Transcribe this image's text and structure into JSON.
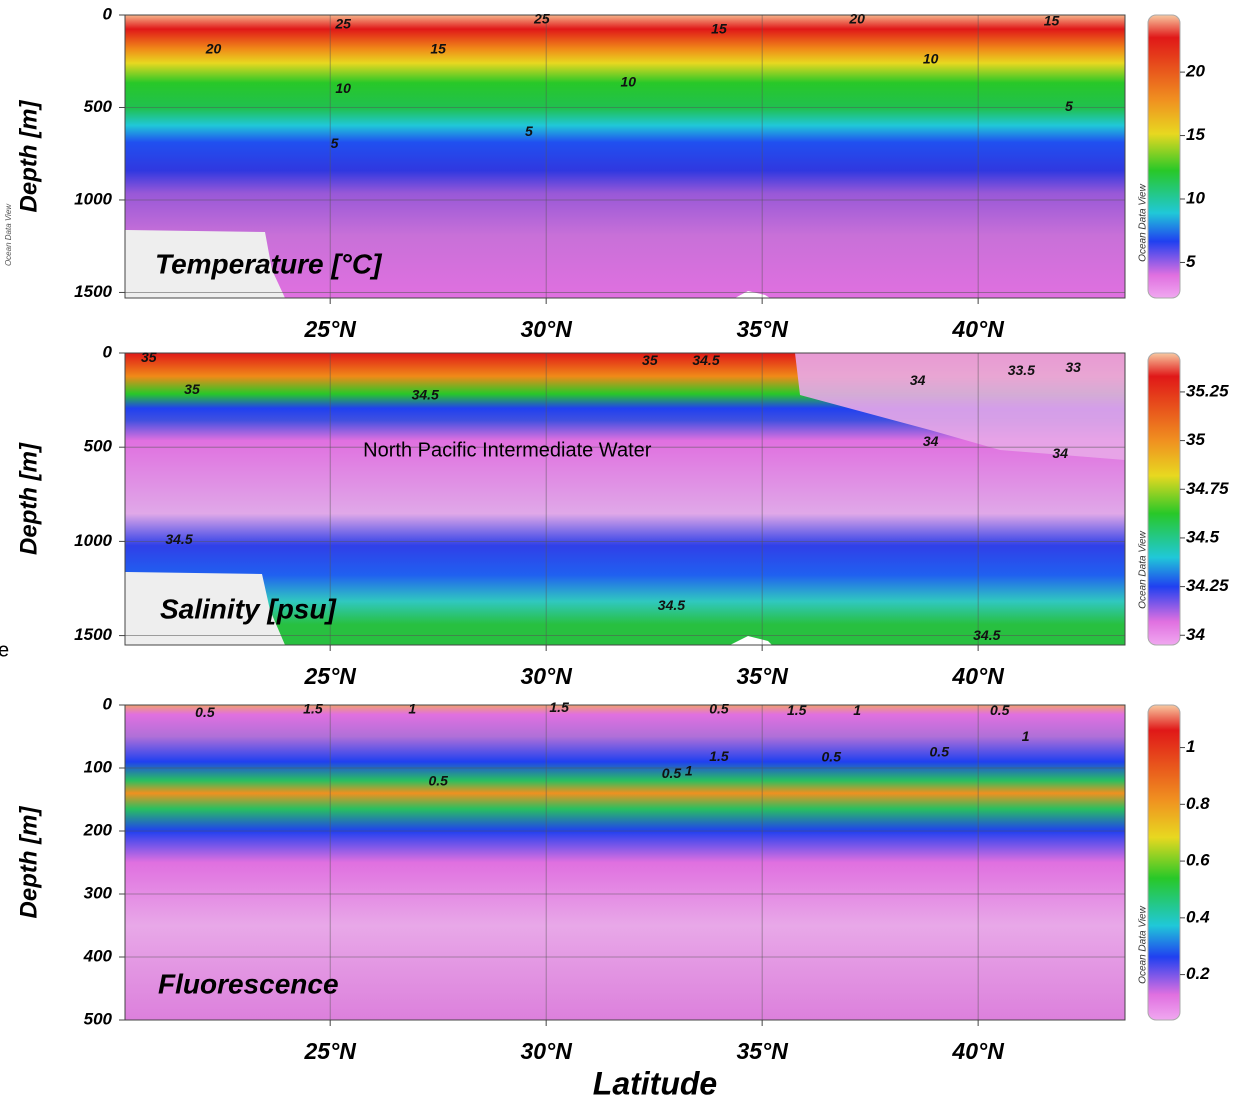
{
  "left_watermark": "Ocean Data View",
  "edge_text": "e",
  "xlabel": "Latitude",
  "chart_data": [
    {
      "type": "section",
      "title": "Temperature [°C]",
      "ylabel": "Depth [m]",
      "watermark": "Ocean Data View",
      "xlim": [
        20.25,
        43.4
      ],
      "xticks": [
        {
          "value": 25,
          "label": "25°N"
        },
        {
          "value": 30,
          "label": "30°N"
        },
        {
          "value": 35,
          "label": "35°N"
        },
        {
          "value": 40,
          "label": "40°N"
        }
      ],
      "ylim": [
        0,
        1530
      ],
      "yticks": [
        0,
        500,
        1000,
        1500
      ],
      "grid": true,
      "colorbar": {
        "lim": [
          2.2,
          24.5
        ],
        "ticks": [
          5,
          10,
          15,
          20
        ]
      },
      "contour_labels": [
        {
          "value": 25,
          "x": 25.3,
          "y": 54
        },
        {
          "value": 20,
          "x": 22.3,
          "y": 188
        },
        {
          "value": 25,
          "x": 29.9,
          "y": 27
        },
        {
          "value": 15,
          "x": 27.5,
          "y": 188
        },
        {
          "value": 15,
          "x": 34.0,
          "y": 80
        },
        {
          "value": 20,
          "x": 37.2,
          "y": 27
        },
        {
          "value": 15,
          "x": 41.7,
          "y": 38
        },
        {
          "value": 10,
          "x": 25.3,
          "y": 403
        },
        {
          "value": 10,
          "x": 31.9,
          "y": 366
        },
        {
          "value": 10,
          "x": 38.9,
          "y": 242
        },
        {
          "value": 5,
          "x": 25.1,
          "y": 699
        },
        {
          "value": 5,
          "x": 29.6,
          "y": 634
        },
        {
          "value": 5,
          "x": 42.1,
          "y": 500
        }
      ]
    },
    {
      "type": "section",
      "title": "Salinity [psu]",
      "ylabel": "Depth [m]",
      "watermark": "Ocean Data View",
      "xlim": [
        20.25,
        43.4
      ],
      "xticks": [
        {
          "value": 25,
          "label": "25°N"
        },
        {
          "value": 30,
          "label": "30°N"
        },
        {
          "value": 35,
          "label": "35°N"
        },
        {
          "value": 40,
          "label": "40°N"
        }
      ],
      "ylim": [
        0,
        1550
      ],
      "yticks": [
        0,
        500,
        1000,
        1500
      ],
      "grid": true,
      "colorbar": {
        "lim": [
          33.95,
          35.45
        ],
        "ticks": [
          34,
          34.25,
          34.5,
          34.75,
          35,
          35.25
        ]
      },
      "annotations": [
        {
          "text": "North Pacific Intermediate Water",
          "x": 29.1,
          "y": 522
        }
      ],
      "contour_labels": [
        {
          "value": 35,
          "x": 20.8,
          "y": 27
        },
        {
          "value": 35,
          "x": 21.8,
          "y": 199
        },
        {
          "value": 34.5,
          "x": 27.2,
          "y": 226
        },
        {
          "value": 35,
          "x": 32.4,
          "y": 43
        },
        {
          "value": 34.5,
          "x": 33.7,
          "y": 43
        },
        {
          "value": 34,
          "x": 38.6,
          "y": 151
        },
        {
          "value": 33.5,
          "x": 41.0,
          "y": 97
        },
        {
          "value": 33,
          "x": 42.2,
          "y": 81
        },
        {
          "value": 34,
          "x": 38.9,
          "y": 473
        },
        {
          "value": 34,
          "x": 41.9,
          "y": 538
        },
        {
          "value": 34.5,
          "x": 21.5,
          "y": 995
        },
        {
          "value": 34.5,
          "x": 32.9,
          "y": 1344
        },
        {
          "value": 34.5,
          "x": 40.2,
          "y": 1505
        }
      ]
    },
    {
      "type": "section",
      "title": "Fluorescence",
      "ylabel": "Depth [m]",
      "watermark": "Ocean Data View",
      "xlim": [
        20.25,
        43.4
      ],
      "xticks": [
        {
          "value": 25,
          "label": "25°N"
        },
        {
          "value": 30,
          "label": "30°N"
        },
        {
          "value": 35,
          "label": "35°N"
        },
        {
          "value": 40,
          "label": "40°N"
        }
      ],
      "ylim": [
        0,
        500
      ],
      "yticks": [
        0,
        100,
        200,
        300,
        400,
        500
      ],
      "grid": true,
      "colorbar": {
        "lim": [
          0.04,
          1.15
        ],
        "ticks": [
          0.2,
          0.4,
          0.6,
          0.8,
          1
        ]
      },
      "contour_labels": [
        {
          "value": 0.5,
          "x": 22.1,
          "y": 13
        },
        {
          "value": 1.5,
          "x": 24.6,
          "y": 8
        },
        {
          "value": 1,
          "x": 26.9,
          "y": 8
        },
        {
          "value": 1.5,
          "x": 30.3,
          "y": 5
        },
        {
          "value": 0.5,
          "x": 34.0,
          "y": 8
        },
        {
          "value": 1.5,
          "x": 35.8,
          "y": 10
        },
        {
          "value": 1,
          "x": 37.2,
          "y": 10
        },
        {
          "value": 0.5,
          "x": 40.5,
          "y": 10
        },
        {
          "value": 0.5,
          "x": 27.5,
          "y": 122
        },
        {
          "value": 1,
          "x": 33.3,
          "y": 106
        },
        {
          "value": 1.5,
          "x": 34.0,
          "y": 83
        },
        {
          "value": 0.5,
          "x": 32.9,
          "y": 110
        },
        {
          "value": 0.5,
          "x": 36.6,
          "y": 84
        },
        {
          "value": 0.5,
          "x": 39.1,
          "y": 76
        },
        {
          "value": 1,
          "x": 41.1,
          "y": 51
        }
      ]
    }
  ]
}
